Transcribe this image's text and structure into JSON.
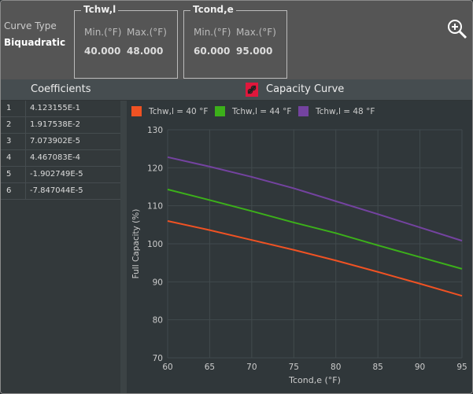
{
  "header": {
    "curve_type_label": "Curve Type",
    "curve_type_value": "Biquadratic",
    "groups": [
      {
        "title": "Tchw,l",
        "min_label": "Min.(°F)",
        "max_label": "Max.(°F)",
        "min": "40.000",
        "max": "48.000"
      },
      {
        "title": "Tcond,e",
        "min_label": "Min.(°F)",
        "max_label": "Max.(°F)",
        "min": "60.000",
        "max": "95.000"
      }
    ],
    "zoom_icon": "zoom-in-icon"
  },
  "coefficients": {
    "title": "Coefficients",
    "rows": [
      {
        "index": "1",
        "value": "4.123155E-1"
      },
      {
        "index": "2",
        "value": "1.917538E-2"
      },
      {
        "index": "3",
        "value": "7.073902E-5"
      },
      {
        "index": "4",
        "value": "4.467083E-4"
      },
      {
        "index": "5",
        "value": "-1.902749E-5"
      },
      {
        "index": "6",
        "value": "-7.847044E-5"
      }
    ]
  },
  "chart_title": "Capacity Curve",
  "chart_data": {
    "type": "line",
    "title": "Capacity Curve",
    "xlabel": "Tcond,e (°F)",
    "ylabel": "Full Capacity (%)",
    "xlim": [
      60,
      95
    ],
    "ylim": [
      70,
      130
    ],
    "xticks": [
      "60",
      "65",
      "70",
      "75",
      "80",
      "85",
      "90",
      "95"
    ],
    "yticks": [
      "70",
      "80",
      "90",
      "100",
      "110",
      "120",
      "130"
    ],
    "grid": true,
    "legend": "top",
    "x": [
      60,
      65,
      70,
      75,
      80,
      85,
      90,
      95
    ],
    "series": [
      {
        "name": "Tchw,l  =  40 °F",
        "color": "#f05223",
        "values": [
          106.0,
          103.6,
          101.0,
          98.4,
          95.6,
          92.6,
          89.5,
          86.3
        ]
      },
      {
        "name": "Tchw,l  =  44 °F",
        "color": "#3cb01a",
        "values": [
          114.3,
          111.5,
          108.6,
          105.6,
          102.8,
          99.6,
          96.5,
          93.4
        ]
      },
      {
        "name": "Tchw,l  =  48 °F",
        "color": "#7443a0",
        "values": [
          122.8,
          120.3,
          117.6,
          114.6,
          111.2,
          107.8,
          104.3,
          100.8
        ]
      }
    ]
  }
}
